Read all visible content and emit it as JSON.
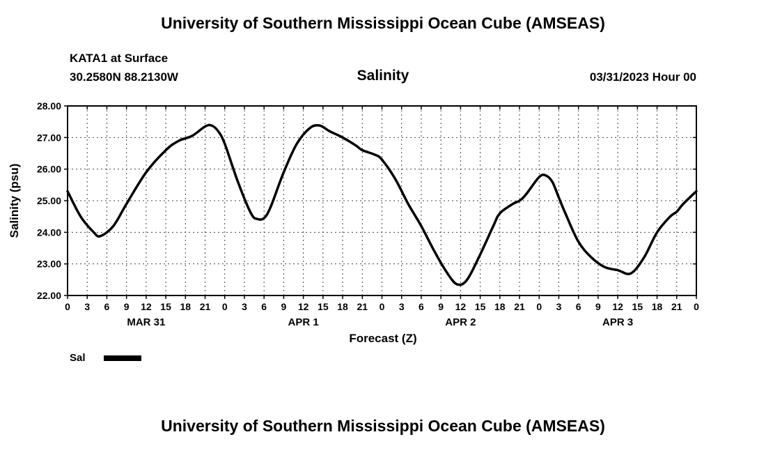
{
  "page": {
    "top_title": "University of Southern Mississippi Ocean Cube (AMSEAS)",
    "bottom_title": "University of Southern Mississippi Ocean Cube (AMSEAS)",
    "station_line1": "KATA1 at Surface",
    "station_line2": "30.2580N  88.2130W",
    "plot_title": "Salinity",
    "datetime_label": "03/31/2023 Hour 00",
    "xaxis_title": "Forecast (Z)",
    "yaxis_title": "Salinity (psu)",
    "legend": {
      "label": "Sal"
    }
  },
  "chart_data": {
    "type": "line",
    "title": "Salinity",
    "xlabel": "Forecast (Z)",
    "ylabel": "Salinity (psu)",
    "xlim": [
      0,
      96
    ],
    "ylim": [
      22,
      28
    ],
    "grid": true,
    "legend_position": "bottom-left",
    "ytick_values": [
      22,
      23,
      24,
      25,
      26,
      27,
      28
    ],
    "ytick_labels": [
      "22.00",
      "23.00",
      "24.00",
      "25.00",
      "26.00",
      "27.00",
      "28.00"
    ],
    "xtick_interval": 3,
    "xtick_labels": [
      "0",
      "3",
      "6",
      "9",
      "12",
      "15",
      "18",
      "21",
      "0",
      "3",
      "6",
      "9",
      "12",
      "15",
      "18",
      "21",
      "0",
      "3",
      "6",
      "9",
      "12",
      "15",
      "18",
      "21",
      "0",
      "3",
      "6",
      "9",
      "12",
      "15",
      "18",
      "21",
      "0"
    ],
    "date_labels": [
      {
        "label": "MAR 31",
        "hour": 12
      },
      {
        "label": "APR 1",
        "hour": 36
      },
      {
        "label": "APR 2",
        "hour": 60
      },
      {
        "label": "APR 3",
        "hour": 84
      }
    ],
    "line_color": "#000000",
    "grid_color": "#444444",
    "series": [
      {
        "name": "Sal",
        "x": [
          0,
          2,
          4,
          5,
          7,
          9,
          12,
          15,
          17,
          19,
          21,
          22,
          23,
          24,
          26,
          28,
          29,
          30,
          31,
          33,
          35,
          37,
          38.5,
          40,
          42,
          44,
          45,
          47,
          48,
          50,
          52,
          54,
          56,
          58,
          59.5,
          61,
          63,
          65,
          66,
          68,
          69,
          70,
          72,
          73,
          74,
          75,
          76,
          78,
          80,
          82,
          84,
          86,
          88,
          90,
          92,
          93,
          94,
          96
        ],
        "y": [
          25.3,
          24.5,
          24.0,
          23.88,
          24.2,
          24.9,
          25.9,
          26.6,
          26.9,
          27.05,
          27.35,
          27.38,
          27.2,
          26.8,
          25.6,
          24.6,
          24.42,
          24.45,
          24.8,
          25.9,
          26.8,
          27.3,
          27.38,
          27.2,
          27.0,
          26.75,
          26.6,
          26.45,
          26.3,
          25.7,
          24.9,
          24.2,
          23.4,
          22.7,
          22.35,
          22.5,
          23.3,
          24.2,
          24.6,
          24.9,
          25.0,
          25.2,
          25.75,
          25.8,
          25.6,
          25.1,
          24.6,
          23.7,
          23.2,
          22.9,
          22.8,
          22.7,
          23.2,
          24.0,
          24.5,
          24.65,
          24.9,
          25.3
        ]
      }
    ]
  }
}
